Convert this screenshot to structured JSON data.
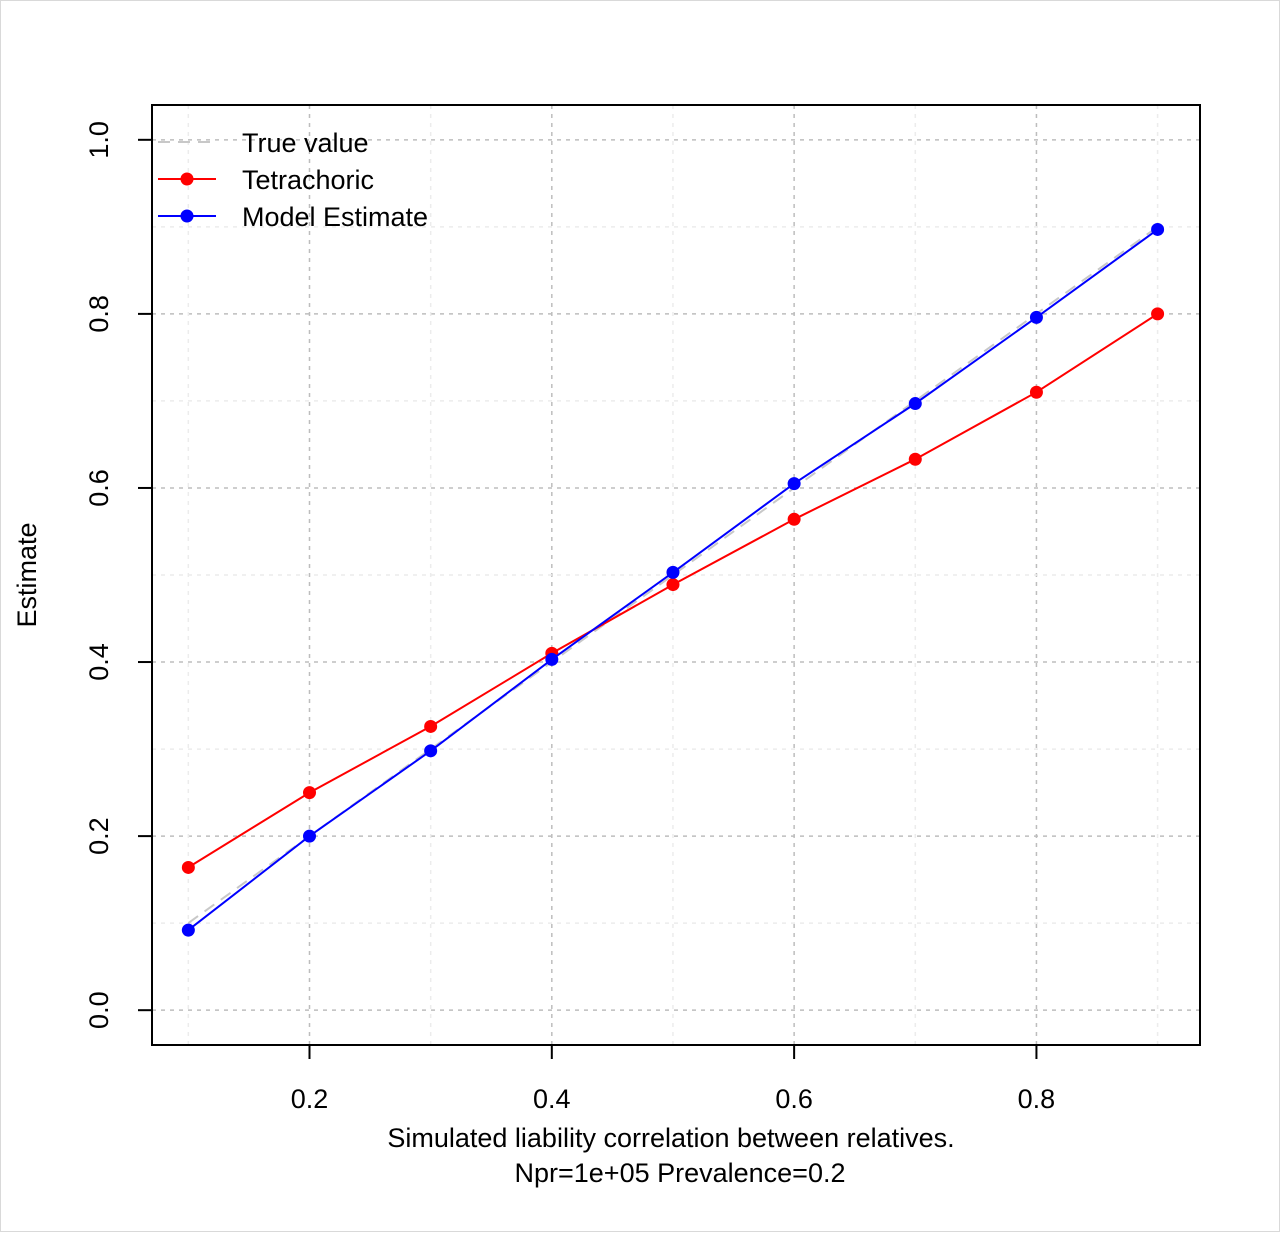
{
  "chart_data": {
    "type": "line",
    "xlabel": "Simulated liability correlation between relatives.",
    "xlabel2": "Npr=1e+05 Prevalence=0.2",
    "ylabel": "Estimate",
    "xlim": [
      0.07,
      0.935
    ],
    "ylim": [
      -0.04,
      1.04
    ],
    "x_ticks": [
      "0.2",
      "0.4",
      "0.6",
      "0.8"
    ],
    "y_ticks": [
      "0.0",
      "0.2",
      "0.4",
      "0.6",
      "0.8",
      "1.0"
    ],
    "grid": true,
    "legend_position": "top-left",
    "x": [
      0.1,
      0.2,
      0.3,
      0.4,
      0.5,
      0.6,
      0.7,
      0.8,
      0.9
    ],
    "series": [
      {
        "name": "True value",
        "style": "dashed",
        "color": "#c8c8c8",
        "values": [
          0.1,
          0.2,
          0.3,
          0.4,
          0.5,
          0.6,
          0.7,
          0.8,
          0.9
        ]
      },
      {
        "name": "Tetrachoric",
        "style": "line-points",
        "color": "#ff0000",
        "values": [
          0.164,
          0.25,
          0.326,
          0.41,
          0.489,
          0.564,
          0.633,
          0.71,
          0.8
        ]
      },
      {
        "name": "Model Estimate",
        "style": "line-points",
        "color": "#0000ff",
        "values": [
          0.092,
          0.2,
          0.298,
          0.403,
          0.503,
          0.605,
          0.697,
          0.796,
          0.897
        ]
      }
    ]
  }
}
